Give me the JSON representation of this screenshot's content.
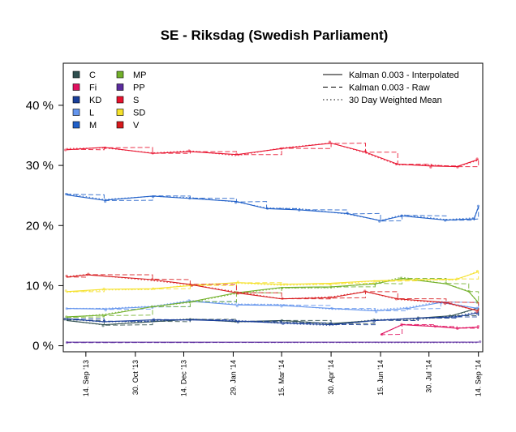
{
  "chart_data": {
    "type": "line",
    "title": "SE - Riksdag (Swedish Parliament)",
    "xlabel": "",
    "ylabel": "",
    "y_unit_suffix": " %",
    "ylim": [
      -1,
      47
    ],
    "y_ticks": [
      0,
      10,
      20,
      30,
      40
    ],
    "xlim": [
      "2013-08-24",
      "2014-09-18"
    ],
    "x_ticks": [
      {
        "date": "2013-09-14",
        "label": "14. Sep '13"
      },
      {
        "date": "2013-10-30",
        "label": "30. Oct '13"
      },
      {
        "date": "2013-12-14",
        "label": "14. Dec '13"
      },
      {
        "date": "2014-01-29",
        "label": "29. Jan '14"
      },
      {
        "date": "2014-03-15",
        "label": "15. Mar '14"
      },
      {
        "date": "2014-04-30",
        "label": "30. Apr '14"
      },
      {
        "date": "2014-06-15",
        "label": "15. Jun '14"
      },
      {
        "date": "2014-07-30",
        "label": "30. Jul '14"
      },
      {
        "date": "2014-09-14",
        "label": "14. Sep '14"
      }
    ],
    "grid": false,
    "legend_position": "top-left",
    "method_legend_position": "top-right",
    "method_legend": [
      {
        "label": "Kalman 0.003 - Interpolated",
        "dash": "solid"
      },
      {
        "label": "Kalman 0.003 - Raw",
        "dash": "dashed"
      },
      {
        "label": "30 Day Weighted Mean",
        "dash": "dotted"
      }
    ],
    "series": [
      {
        "name": "C",
        "color": "#2F4F4F",
        "points": [
          [
            "2013-08-27",
            4.2
          ],
          [
            "2013-10-01",
            3.5
          ],
          [
            "2013-11-15",
            4.0
          ],
          [
            "2013-12-20",
            4.4
          ],
          [
            "2014-02-01",
            4.0
          ],
          [
            "2014-03-15",
            4.2
          ],
          [
            "2014-04-30",
            3.7
          ],
          [
            "2014-06-10",
            4.2
          ],
          [
            "2014-07-20",
            4.6
          ],
          [
            "2014-08-20",
            5.0
          ],
          [
            "2014-09-14",
            6.3
          ]
        ]
      },
      {
        "name": "Fi",
        "color": "#E0115F",
        "points": [
          [
            "2014-06-15",
            1.9
          ],
          [
            "2014-07-05",
            3.5
          ],
          [
            "2014-08-05",
            3.2
          ],
          [
            "2014-08-25",
            2.9
          ],
          [
            "2014-09-14",
            3.1
          ]
        ]
      },
      {
        "name": "KD",
        "color": "#1A3F9A",
        "points": [
          [
            "2013-08-27",
            4.5
          ],
          [
            "2013-10-01",
            4.0
          ],
          [
            "2013-11-15",
            4.3
          ],
          [
            "2013-12-20",
            4.3
          ],
          [
            "2014-02-01",
            4.1
          ],
          [
            "2014-03-15",
            3.8
          ],
          [
            "2014-04-30",
            3.5
          ],
          [
            "2014-06-10",
            4.2
          ],
          [
            "2014-07-20",
            4.6
          ],
          [
            "2014-08-25",
            4.8
          ],
          [
            "2014-09-14",
            5.5
          ]
        ]
      },
      {
        "name": "L",
        "color": "#6495ED",
        "points": [
          [
            "2013-08-27",
            6.2
          ],
          [
            "2013-10-01",
            6.1
          ],
          [
            "2013-11-15",
            6.5
          ],
          [
            "2013-12-20",
            7.4
          ],
          [
            "2014-02-01",
            6.8
          ],
          [
            "2014-03-15",
            6.7
          ],
          [
            "2014-04-30",
            6.2
          ],
          [
            "2014-06-10",
            5.8
          ],
          [
            "2014-07-10",
            6.2
          ],
          [
            "2014-08-10",
            7.2
          ],
          [
            "2014-09-14",
            6.2
          ]
        ]
      },
      {
        "name": "M",
        "color": "#1F5FC8",
        "points": [
          [
            "2013-08-27",
            25.1
          ],
          [
            "2013-10-01",
            24.2
          ],
          [
            "2013-11-15",
            24.9
          ],
          [
            "2013-12-20",
            24.5
          ],
          [
            "2014-02-01",
            24.0
          ],
          [
            "2014-03-01",
            22.8
          ],
          [
            "2014-04-01",
            22.6
          ],
          [
            "2014-05-15",
            22.0
          ],
          [
            "2014-06-15",
            20.8
          ],
          [
            "2014-07-05",
            21.6
          ],
          [
            "2014-08-15",
            20.9
          ],
          [
            "2014-09-10",
            21.1
          ],
          [
            "2014-09-14",
            23.1
          ]
        ]
      },
      {
        "name": "MP",
        "color": "#72B02A",
        "points": [
          [
            "2013-08-27",
            4.8
          ],
          [
            "2013-10-01",
            5.1
          ],
          [
            "2013-11-15",
            6.5
          ],
          [
            "2013-12-20",
            7.3
          ],
          [
            "2014-02-01",
            8.8
          ],
          [
            "2014-03-15",
            9.7
          ],
          [
            "2014-04-30",
            9.8
          ],
          [
            "2014-06-10",
            10.3
          ],
          [
            "2014-07-05",
            11.2
          ],
          [
            "2014-08-15",
            10.3
          ],
          [
            "2014-09-05",
            9.0
          ],
          [
            "2014-09-14",
            7.2
          ]
        ]
      },
      {
        "name": "PP",
        "color": "#5B2C9E",
        "points": [
          [
            "2013-08-27",
            0.6
          ],
          [
            "2014-09-14",
            0.6
          ]
        ]
      },
      {
        "name": "S",
        "color": "#E8112D",
        "points": [
          [
            "2013-08-27",
            32.6
          ],
          [
            "2013-10-01",
            33.0
          ],
          [
            "2013-11-15",
            32.0
          ],
          [
            "2013-12-20",
            32.3
          ],
          [
            "2014-02-01",
            31.8
          ],
          [
            "2014-03-15",
            32.8
          ],
          [
            "2014-04-30",
            33.7
          ],
          [
            "2014-06-01",
            32.2
          ],
          [
            "2014-07-01",
            30.2
          ],
          [
            "2014-08-01",
            29.9
          ],
          [
            "2014-08-25",
            29.8
          ],
          [
            "2014-09-14",
            31.0
          ]
        ]
      },
      {
        "name": "SD",
        "color": "#F5E12A",
        "points": [
          [
            "2013-08-27",
            9.0
          ],
          [
            "2013-10-01",
            9.4
          ],
          [
            "2013-11-15",
            9.5
          ],
          [
            "2013-12-20",
            10.0
          ],
          [
            "2014-02-01",
            10.5
          ],
          [
            "2014-03-15",
            10.2
          ],
          [
            "2014-04-30",
            10.4
          ],
          [
            "2014-06-10",
            10.8
          ],
          [
            "2014-07-20",
            11.0
          ],
          [
            "2014-08-25",
            11.1
          ],
          [
            "2014-09-14",
            12.3
          ]
        ]
      },
      {
        "name": "V",
        "color": "#D7191C",
        "points": [
          [
            "2013-08-27",
            11.4
          ],
          [
            "2013-09-15",
            11.8
          ],
          [
            "2013-11-15",
            11.0
          ],
          [
            "2013-12-20",
            10.2
          ],
          [
            "2014-02-01",
            8.8
          ],
          [
            "2014-03-15",
            7.8
          ],
          [
            "2014-04-30",
            8.0
          ],
          [
            "2014-06-01",
            9.0
          ],
          [
            "2014-07-01",
            7.8
          ],
          [
            "2014-08-15",
            7.2
          ],
          [
            "2014-09-14",
            5.8
          ]
        ]
      }
    ]
  }
}
